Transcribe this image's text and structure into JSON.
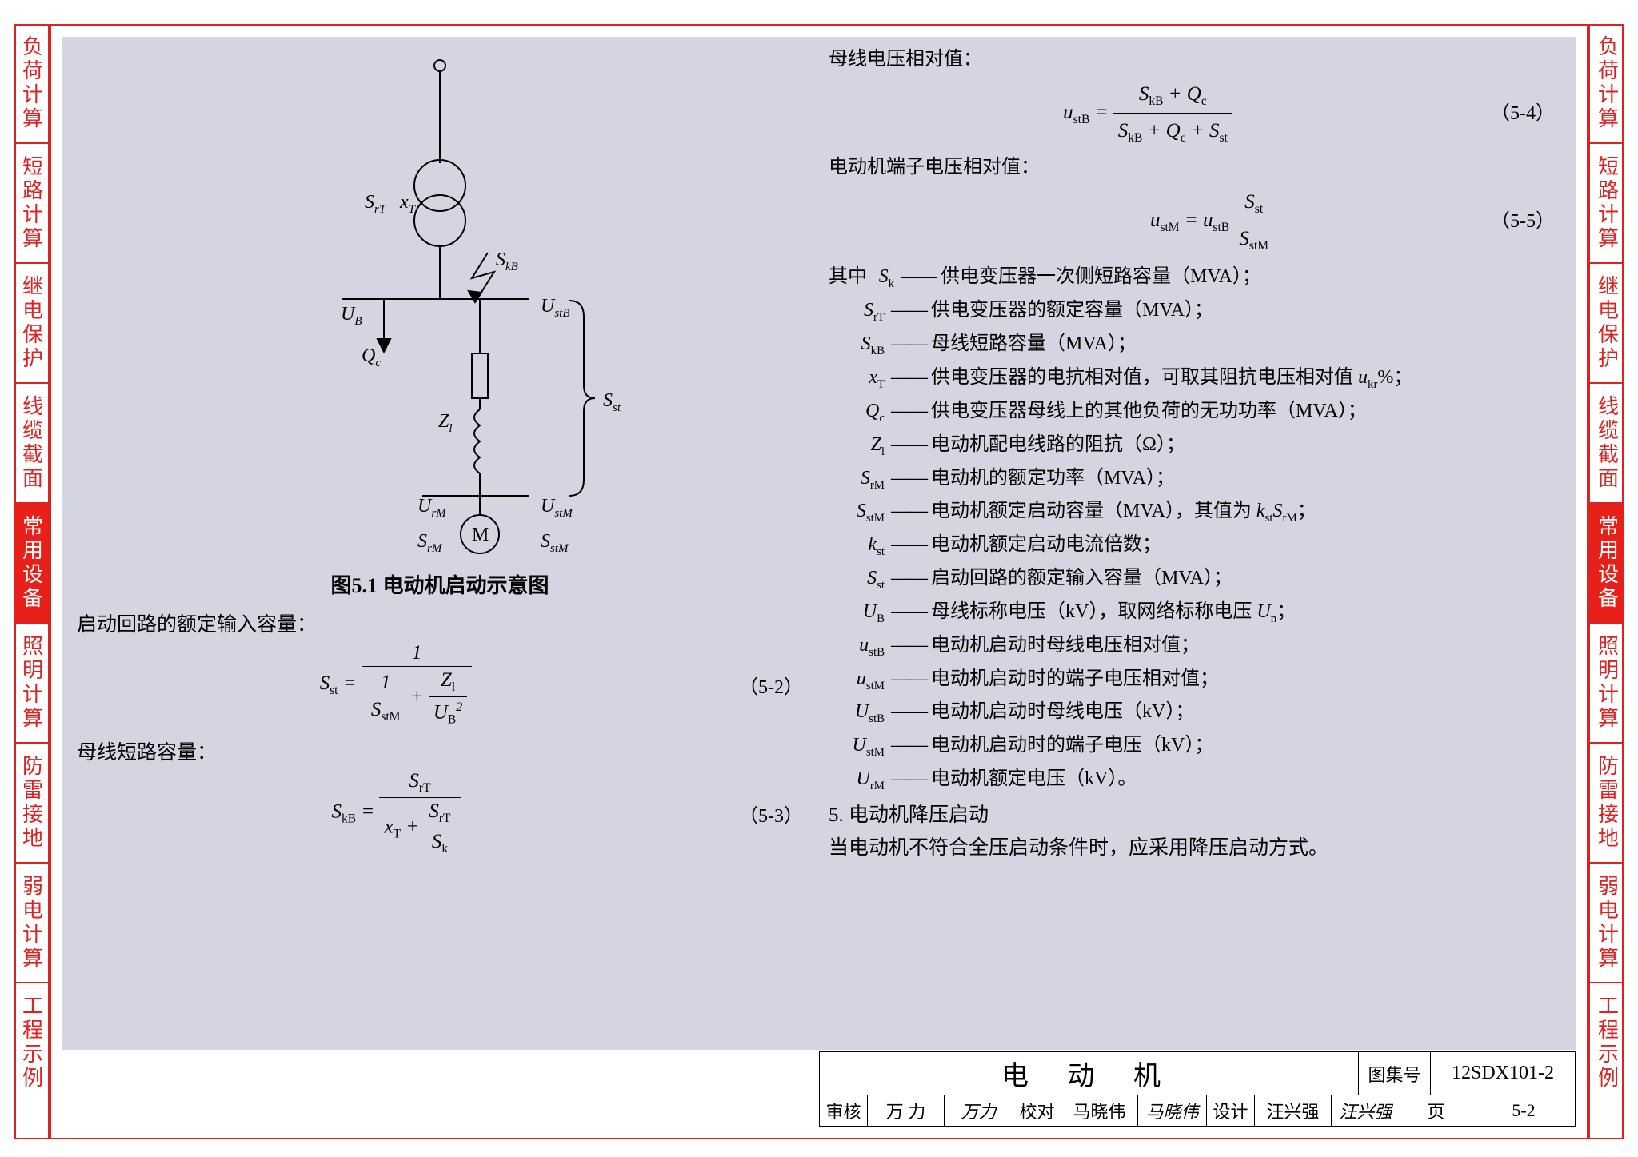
{
  "colors": {
    "frame": "#d22",
    "active_tab_bg": "#e8201a",
    "content_bg": "#d4d5e0",
    "text": "#000000"
  },
  "tabs": [
    {
      "label": "负荷计算",
      "active": false
    },
    {
      "label": "短路计算",
      "active": false
    },
    {
      "label": "继电保护",
      "active": false
    },
    {
      "label": "线缆截面",
      "active": false
    },
    {
      "label": "常用设备",
      "active": true
    },
    {
      "label": "照明计算",
      "active": false
    },
    {
      "label": "防雷接地",
      "active": false
    },
    {
      "label": "弱电计算",
      "active": false
    },
    {
      "label": "工程示例",
      "active": false
    }
  ],
  "figure": {
    "caption": "图5.1 电动机启动示意图",
    "labels": {
      "SrT": "S",
      "SrT_sub": "rT",
      "xT": "x",
      "xT_sub": "T",
      "SkB": "S",
      "SkB_sub": "kB",
      "UB": "U",
      "UB_sub": "B",
      "UstB": "U",
      "UstB_sub": "stB",
      "Qc": "Q",
      "Qc_sub": "c",
      "Zl": "Z",
      "Zl_sub": "l",
      "Sst": "S",
      "Sst_sub": "st",
      "UrM": "U",
      "UrM_sub": "rM",
      "UstM": "U",
      "UstM_sub": "stM",
      "SrM": "S",
      "SrM_sub": "rM",
      "SstM": "S",
      "SstM_sub": "stM",
      "M": "M"
    }
  },
  "left_text": {
    "p1": "启动回路的额定输入容量：",
    "p2": "母线短路容量："
  },
  "equations": {
    "e52_num": "（5-2）",
    "e53_num": "（5-3）",
    "e54_num": "（5-4）",
    "e55_num": "（5-5）"
  },
  "right_text": {
    "p1": "母线电压相对值：",
    "p2": "电动机端子电压相对值：",
    "where": "其中",
    "sec5": "5. 电动机降压启动",
    "sec5_body": "当电动机不符合全压启动条件时，应采用降压启动方式。"
  },
  "where": [
    {
      "sym": "S",
      "sub": "k",
      "desc": "供电变压器一次侧短路容量（MVA）；"
    },
    {
      "sym": "S",
      "sub": "rT",
      "desc": "供电变压器的额定容量（MVA）；"
    },
    {
      "sym": "S",
      "sub": "kB",
      "desc": "母线短路容量（MVA）；"
    },
    {
      "sym": "x",
      "sub": "T",
      "desc": "供电变压器的电抗相对值，可取其阻抗电压相对值 <span class='it'>u<sub>kr</sub></span>%；"
    },
    {
      "sym": "Q",
      "sub": "c",
      "desc": "供电变压器母线上的其他负荷的无功功率（MVA）；"
    },
    {
      "sym": "Z",
      "sub": "l",
      "desc": "电动机配电线路的阻抗（Ω）；"
    },
    {
      "sym": "S",
      "sub": "rM",
      "desc": "电动机的额定功率（MVA）；"
    },
    {
      "sym": "S",
      "sub": "stM",
      "desc": "电动机额定启动容量（MVA），其值为 <span class='it'>k<sub>st</sub>S<sub>rM</sub></span>；"
    },
    {
      "sym": "k",
      "sub": "st",
      "desc": "电动机额定启动电流倍数；"
    },
    {
      "sym": "S",
      "sub": "st",
      "desc": "启动回路的额定输入容量（MVA）；"
    },
    {
      "sym": "U",
      "sub": "B",
      "desc": "母线标称电压（kV），取网络标称电压 <span class='it'>U<sub>n</sub></span>；"
    },
    {
      "sym": "u",
      "sub": "stB",
      "desc": "电动机启动时母线电压相对值；"
    },
    {
      "sym": "u",
      "sub": "stM",
      "desc": "电动机启动时的端子电压相对值；"
    },
    {
      "sym": "U",
      "sub": "stB",
      "desc": "电动机启动时母线电压（kV）；"
    },
    {
      "sym": "U",
      "sub": "stM",
      "desc": "电动机启动时的端子电压（kV）；"
    },
    {
      "sym": "U",
      "sub": "rM",
      "desc": "电动机额定电压（kV）。"
    }
  ],
  "titleblock": {
    "title": "电 动 机",
    "tuji_label": "图集号",
    "tuji_value": "12SDX101-2",
    "row": [
      {
        "lab": "审核",
        "val": "万 力",
        "sig": "万力"
      },
      {
        "lab": "校对",
        "val": "马晓伟",
        "sig": "马晓伟"
      },
      {
        "lab": "设计",
        "val": "汪兴强",
        "sig": "汪兴强"
      }
    ],
    "page_label": "页",
    "page_value": "5-2"
  }
}
